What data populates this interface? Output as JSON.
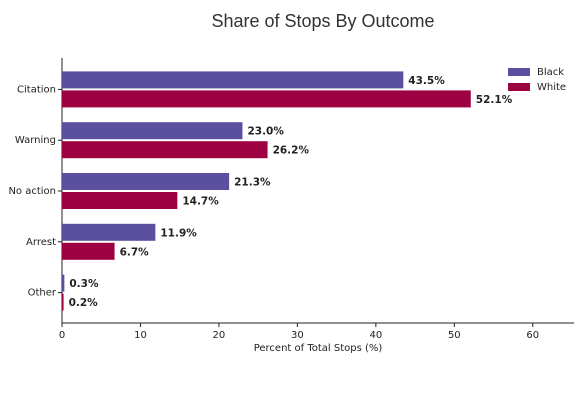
{
  "chart_data": {
    "type": "barh",
    "title": "Share of Stops By Outcome",
    "x_label": "Percent of Total Stops (%)",
    "categories": [
      "Citation",
      "Warning",
      "No action",
      "Arrest",
      "Other"
    ],
    "series": [
      {
        "name": "Black",
        "color": "#5b4fa0",
        "values": [
          43.5,
          23.0,
          21.3,
          11.9,
          0.3
        ],
        "value_labels": [
          "43.5%",
          "23.0%",
          "21.3%",
          "11.9%",
          "0.3%"
        ]
      },
      {
        "name": "White",
        "color": "#9e0142",
        "values": [
          52.1,
          26.2,
          14.7,
          6.7,
          0.2
        ],
        "value_labels": [
          "52.1%",
          "26.2%",
          "14.7%",
          "6.7%",
          "0.2%"
        ]
      }
    ],
    "xlim": [
      0,
      65
    ],
    "xticks": [
      0,
      10,
      20,
      30,
      40,
      50,
      60
    ],
    "grid": false,
    "legend": "upper right"
  }
}
